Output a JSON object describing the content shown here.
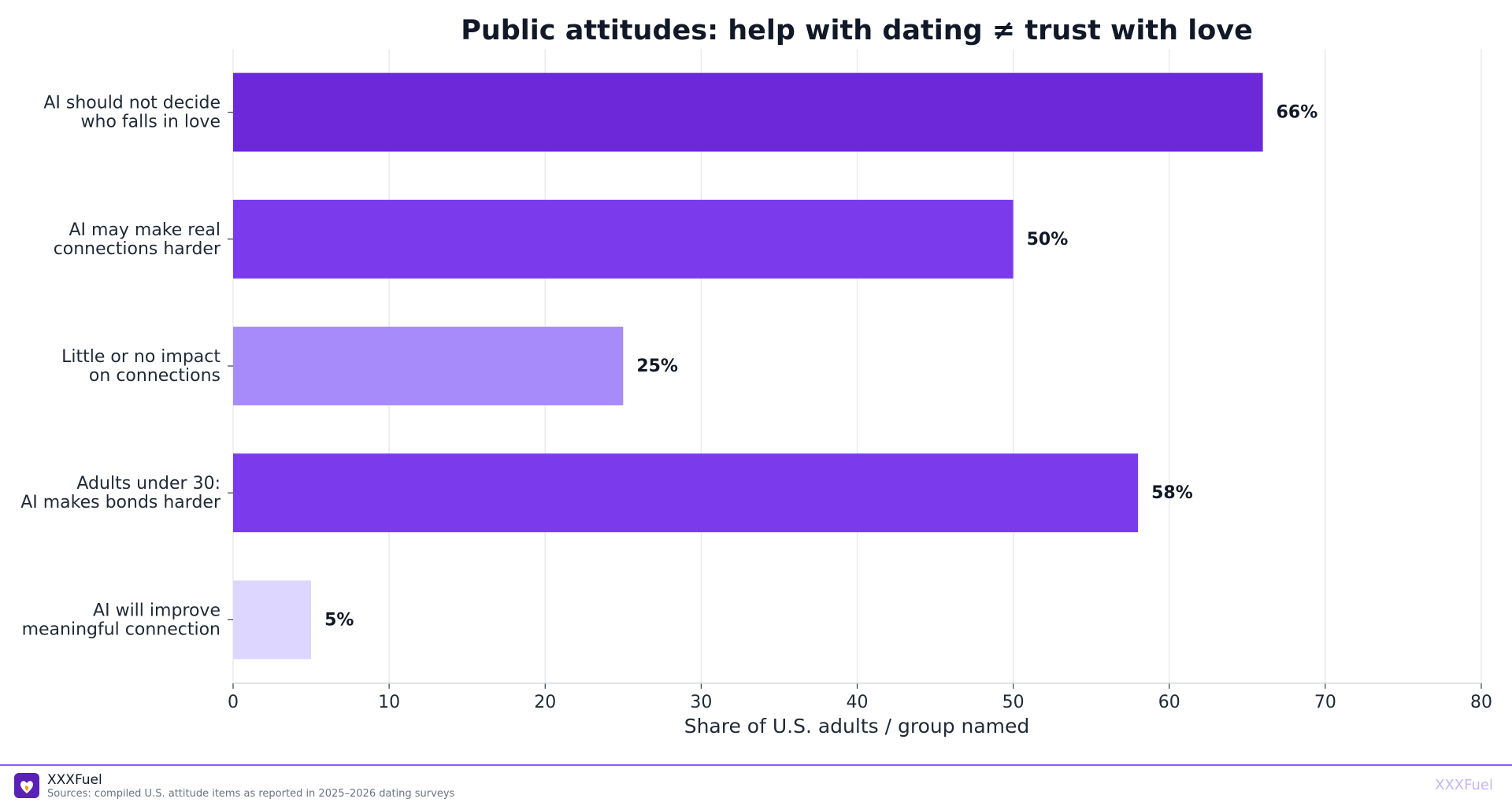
{
  "chart_data": {
    "type": "bar",
    "orientation": "horizontal",
    "title": "Public attitudes: help with dating ≠ trust with love",
    "xlabel": "Share of U.S. adults / group named",
    "ylabel": "",
    "xlim": [
      0,
      80
    ],
    "xticks": [
      0,
      10,
      20,
      30,
      40,
      50,
      60,
      70,
      80
    ],
    "grid": "vertical",
    "categories": [
      [
        "AI should not decide",
        "who falls in love"
      ],
      [
        "AI may make real",
        "connections harder"
      ],
      [
        "Little or no impact",
        "on connections"
      ],
      [
        "Adults under 30:",
        "AI makes bonds harder"
      ],
      [
        "AI will improve",
        "meaningful connection"
      ]
    ],
    "values": [
      66,
      50,
      25,
      58,
      5
    ],
    "value_labels": [
      "66%",
      "50%",
      "25%",
      "58%",
      "5%"
    ],
    "colors": [
      "#6d28d9",
      "#7c3aed",
      "#a78bfa",
      "#7c3aed",
      "#ddd6fe"
    ]
  },
  "footer": {
    "brand": "XXXFuel",
    "source": "Sources: compiled U.S. attitude items as reported in 2025–2026 dating surveys",
    "watermark": "XXXFuel"
  },
  "icons": {
    "logo": "heart-flame-logo-icon"
  },
  "colors": {
    "accent": "#8b5cf6",
    "logo_bg": "#5b21b6"
  }
}
